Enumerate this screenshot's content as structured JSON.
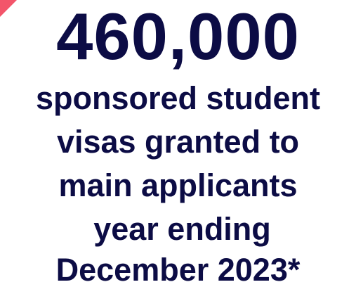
{
  "headline": {
    "value": "460,000"
  },
  "caption": {
    "lines": [
      "sponsored student",
      "visas granted to",
      "main applicants",
      "year ending",
      "December 2023*"
    ]
  },
  "colors": {
    "text": "#0c0c45",
    "accent": "#f3556a",
    "background": "#ffffff"
  }
}
